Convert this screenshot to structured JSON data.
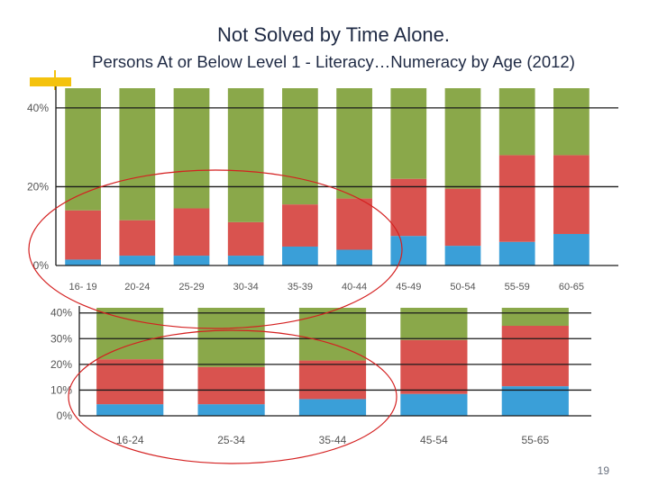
{
  "slide": {
    "title": "Not Solved by Time Alone.",
    "subtitle": "Persons At or Below Level 1 - Literacy…Numeracy by Age (2012)",
    "page_number": "19"
  },
  "colors": {
    "green": "#8aa84a",
    "red": "#d9534f",
    "blue": "#3a9fd8",
    "ellipse": "#d42020"
  },
  "chart_data": [
    {
      "type": "bar",
      "stacked": true,
      "title": "",
      "xlabel": "",
      "ylabel": "",
      "ylim": [
        0,
        45
      ],
      "yticks": [
        0,
        20,
        40
      ],
      "ytick_labels": [
        "0%",
        "20%",
        "40%"
      ],
      "categories": [
        "16-19",
        "20-24",
        "25-29",
        "30-34",
        "35-39",
        "40-44",
        "45-49",
        "50-54",
        "55-59",
        "60-65"
      ],
      "category_labels": [
        "16- 19",
        "20-24",
        "25-29",
        "30-34",
        "35-39",
        "40-44",
        "45-49",
        "50-54",
        "55-59",
        "60-65"
      ],
      "series": [
        {
          "name": "blue",
          "values": [
            1.5,
            2.5,
            2.5,
            2.5,
            4.8,
            4.0,
            7.5,
            5.0,
            6.0,
            8.0
          ]
        },
        {
          "name": "red",
          "values": [
            12.5,
            9.0,
            12.0,
            8.5,
            10.7,
            13.0,
            14.5,
            14.5,
            22.0,
            20.0
          ]
        },
        {
          "name": "green",
          "values": [
            31.0,
            33.5,
            30.5,
            34.0,
            29.5,
            28.0,
            23.0,
            25.5,
            17.0,
            17.0
          ]
        }
      ]
    },
    {
      "type": "bar",
      "stacked": true,
      "title": "",
      "xlabel": "",
      "ylabel": "",
      "ylim": [
        0,
        42
      ],
      "yticks": [
        0,
        10,
        20,
        30,
        40
      ],
      "ytick_labels": [
        "0%",
        "10%",
        "20%",
        "30%",
        "40%"
      ],
      "categories": [
        "16-24",
        "25-34",
        "35-44",
        "45-54",
        "55-65"
      ],
      "category_labels": [
        "16-24",
        "25-34",
        "35-44",
        "45-54",
        "55-65"
      ],
      "series": [
        {
          "name": "blue",
          "values": [
            4.5,
            4.5,
            6.5,
            8.5,
            11.5
          ]
        },
        {
          "name": "red",
          "values": [
            17.5,
            14.5,
            15.0,
            21.0,
            23.5
          ]
        },
        {
          "name": "green",
          "values": [
            20.0,
            23.0,
            20.5,
            12.5,
            7.0
          ]
        }
      ]
    }
  ]
}
